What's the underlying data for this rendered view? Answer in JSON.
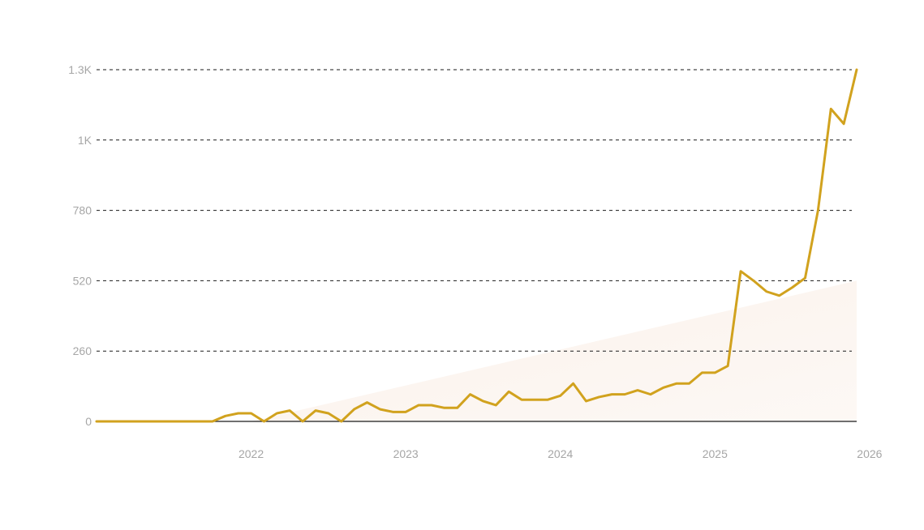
{
  "chart_data": {
    "type": "line",
    "title": "",
    "xlabel": "",
    "ylabel": "",
    "x_start": "2021-06",
    "x_end": "2026-05",
    "xlim": [
      "2021-06",
      "2026-05"
    ],
    "ylim": [
      0,
      1300
    ],
    "grid": true,
    "y_ticks": [
      {
        "value": 0,
        "label": "0"
      },
      {
        "value": 260,
        "label": "260"
      },
      {
        "value": 520,
        "label": "520"
      },
      {
        "value": 780,
        "label": "780"
      },
      {
        "value": 1040,
        "label": "1K"
      },
      {
        "value": 1300,
        "label": "1.3K"
      }
    ],
    "x_ticks": [
      {
        "value": "2022-06",
        "label": "2022"
      },
      {
        "value": "2023-06",
        "label": "2023"
      },
      {
        "value": "2024-06",
        "label": "2024"
      },
      {
        "value": "2025-06",
        "label": "2025"
      },
      {
        "value": "2026-06",
        "label": "2026"
      }
    ],
    "series": [
      {
        "color": "#d1a21e",
        "points": [
          [
            "2021-06",
            0
          ],
          [
            "2021-07",
            0
          ],
          [
            "2021-08",
            0
          ],
          [
            "2021-09",
            0
          ],
          [
            "2021-10",
            0
          ],
          [
            "2021-11",
            0
          ],
          [
            "2021-12",
            0
          ],
          [
            "2022-01",
            0
          ],
          [
            "2022-02",
            0
          ],
          [
            "2022-03",
            0
          ],
          [
            "2022-04",
            20
          ],
          [
            "2022-05",
            30
          ],
          [
            "2022-06",
            30
          ],
          [
            "2022-07",
            0
          ],
          [
            "2022-08",
            30
          ],
          [
            "2022-09",
            40
          ],
          [
            "2022-10",
            0
          ],
          [
            "2022-11",
            40
          ],
          [
            "2022-12",
            30
          ],
          [
            "2023-01",
            0
          ],
          [
            "2023-02",
            45
          ],
          [
            "2023-03",
            70
          ],
          [
            "2023-04",
            45
          ],
          [
            "2023-05",
            35
          ],
          [
            "2023-06",
            35
          ],
          [
            "2023-07",
            60
          ],
          [
            "2023-08",
            60
          ],
          [
            "2023-09",
            50
          ],
          [
            "2023-10",
            50
          ],
          [
            "2023-11",
            100
          ],
          [
            "2023-12",
            75
          ],
          [
            "2024-01",
            60
          ],
          [
            "2024-02",
            110
          ],
          [
            "2024-03",
            80
          ],
          [
            "2024-04",
            80
          ],
          [
            "2024-05",
            80
          ],
          [
            "2024-06",
            95
          ],
          [
            "2024-07",
            140
          ],
          [
            "2024-08",
            75
          ],
          [
            "2024-09",
            90
          ],
          [
            "2024-10",
            100
          ],
          [
            "2024-11",
            100
          ],
          [
            "2024-12",
            115
          ],
          [
            "2025-01",
            100
          ],
          [
            "2025-02",
            125
          ],
          [
            "2025-03",
            140
          ],
          [
            "2025-04",
            140
          ],
          [
            "2025-05",
            180
          ],
          [
            "2025-06",
            180
          ],
          [
            "2025-07",
            205
          ],
          [
            "2025-08",
            555
          ],
          [
            "2025-09",
            520
          ],
          [
            "2025-10",
            480
          ],
          [
            "2025-11",
            465
          ],
          [
            "2025-12",
            495
          ],
          [
            "2026-01",
            530
          ],
          [
            "2026-02",
            780
          ],
          [
            "2026-03",
            1155
          ],
          [
            "2026-04",
            1100
          ],
          [
            "2026-05",
            1300
          ]
        ]
      }
    ],
    "background_band": {
      "color": "#f3d9c6",
      "from": [
        "2022-06",
        0
      ],
      "to": [
        "2026-05",
        520
      ]
    }
  }
}
